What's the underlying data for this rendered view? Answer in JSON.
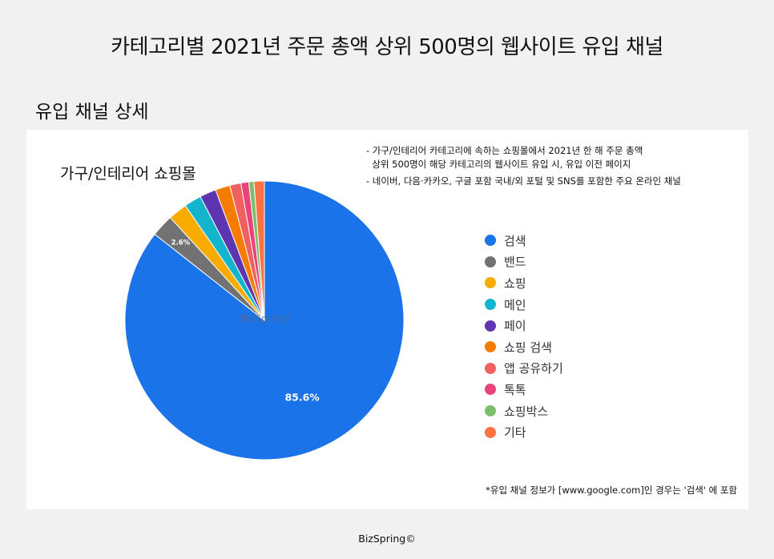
{
  "header": {
    "title": "카테고리별 2021년 주문 총액 상위 500명의 웹사이트 유입 채널",
    "section_title": "유입 채널 상세"
  },
  "notes": [
    "- 가구/인테리어 카테고리에 속하는 쇼핑몰에서 2021년 한 해 주문 총액",
    "  상위 500명이 해당 카테고리의 웹사이트 유입 시, 유입 이전 페이지",
    "- 네이버, 다음·카카오, 구글 포함 국내/외 포털 및 SNS를 포함한 주요 온라인 채널"
  ],
  "watermark": "BizSpring*",
  "footnote": "*유입 채널 정보가 [www.google.com]인 경우는 '검색' 에 포함",
  "footer": "BizSpring©",
  "chart_data": {
    "type": "pie",
    "title": "가구/인테리어 쇼핑몰",
    "categories": [
      "검색",
      "밴드",
      "쇼핑",
      "메인",
      "페이",
      "쇼핑 검색",
      "앱 공유하기",
      "톡톡",
      "쇼핑박스",
      "기타"
    ],
    "values": [
      85.6,
      2.6,
      2.2,
      2.0,
      1.9,
      1.7,
      1.3,
      0.9,
      0.6,
      1.2
    ],
    "data_labels": [
      "85.6%",
      "2.6%",
      "",
      "",
      "",
      "",
      "",
      "",
      "",
      ""
    ],
    "colors": [
      "#1a73e8",
      "#727272",
      "#f9ab00",
      "#12b5cb",
      "#5e35b1",
      "#f57c00",
      "#f06060",
      "#e8437b",
      "#7cbf6a",
      "#ff7043"
    ],
    "start": "12 o'clock",
    "direction": "clockwise",
    "legend_position": "right"
  }
}
